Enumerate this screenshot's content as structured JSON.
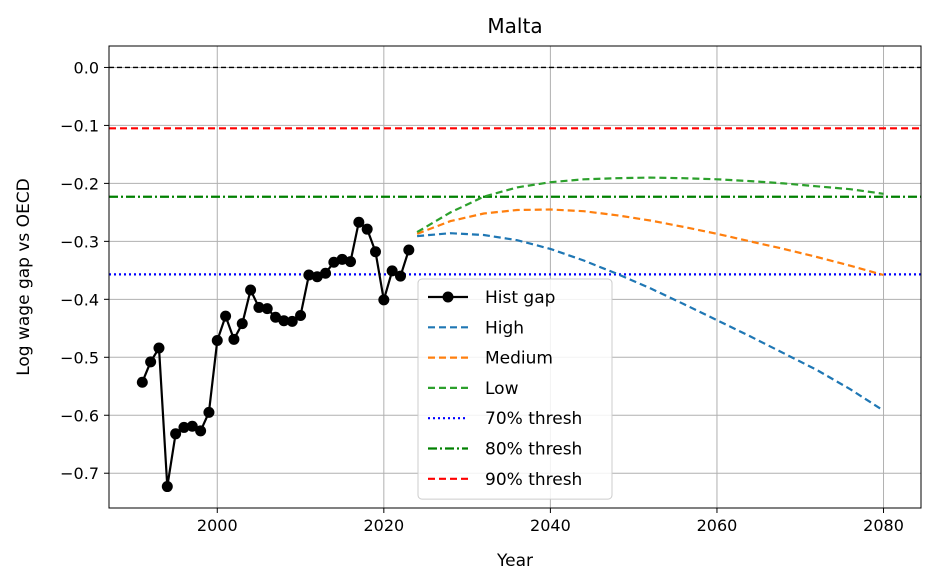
{
  "chart_data": {
    "type": "line",
    "title": "Malta",
    "xlabel": "Year",
    "ylabel": "Log wage gap vs OECD",
    "xlim": [
      1987,
      2084.5
    ],
    "ylim": [
      -0.76,
      0.037
    ],
    "xticks": [
      2000,
      2020,
      2040,
      2060,
      2080
    ],
    "yticks": [
      0.0,
      -0.1,
      -0.2,
      -0.3,
      -0.4,
      -0.5,
      -0.6,
      -0.7
    ],
    "ytick_labels": [
      "0.0",
      "−0.1",
      "−0.2",
      "−0.3",
      "−0.4",
      "−0.5",
      "−0.6",
      "−0.7"
    ],
    "xtick_labels": [
      "2000",
      "2020",
      "2040",
      "2060",
      "2080"
    ],
    "grid": true,
    "legend_position": "lower-center",
    "historical": {
      "name": "Hist gap",
      "color": "#000000",
      "x": [
        1991,
        1992,
        1993,
        1994,
        1995,
        1996,
        1997,
        1998,
        1999,
        2000,
        2001,
        2002,
        2003,
        2004,
        2005,
        2006,
        2007,
        2008,
        2009,
        2010,
        2011,
        2012,
        2013,
        2014,
        2015,
        2016,
        2017,
        2018,
        2019,
        2020,
        2021,
        2022,
        2023
      ],
      "y": [
        -0.543,
        -0.508,
        -0.484,
        -0.723,
        -0.632,
        -0.621,
        -0.619,
        -0.627,
        -0.595,
        -0.471,
        -0.429,
        -0.469,
        -0.442,
        -0.384,
        -0.414,
        -0.416,
        -0.431,
        -0.437,
        -0.438,
        -0.428,
        -0.358,
        -0.361,
        -0.355,
        -0.336,
        -0.331,
        -0.335,
        -0.267,
        -0.279,
        -0.318,
        -0.401,
        -0.351,
        -0.36,
        -0.315
      ]
    },
    "scenarios": [
      {
        "name": "High",
        "color": "#1f77b4",
        "x": [
          2024,
          2028,
          2032,
          2036,
          2040,
          2044,
          2048,
          2052,
          2056,
          2060,
          2064,
          2068,
          2072,
          2076,
          2080
        ],
        "y": [
          -0.291,
          -0.286,
          -0.289,
          -0.298,
          -0.313,
          -0.333,
          -0.356,
          -0.381,
          -0.408,
          -0.436,
          -0.464,
          -0.493,
          -0.522,
          -0.555,
          -0.592
        ]
      },
      {
        "name": "Medium",
        "color": "#ff7f0e",
        "x": [
          2024,
          2028,
          2032,
          2036,
          2040,
          2044,
          2048,
          2052,
          2056,
          2060,
          2064,
          2068,
          2072,
          2076,
          2080
        ],
        "y": [
          -0.287,
          -0.265,
          -0.252,
          -0.246,
          -0.245,
          -0.248,
          -0.255,
          -0.264,
          -0.275,
          -0.287,
          -0.3,
          -0.313,
          -0.327,
          -0.342,
          -0.358
        ]
      },
      {
        "name": "Low",
        "color": "#2ca02c",
        "x": [
          2024,
          2028,
          2032,
          2036,
          2040,
          2044,
          2048,
          2052,
          2056,
          2060,
          2064,
          2068,
          2072,
          2076,
          2080
        ],
        "y": [
          -0.284,
          -0.25,
          -0.223,
          -0.207,
          -0.198,
          -0.193,
          -0.191,
          -0.19,
          -0.191,
          -0.193,
          -0.196,
          -0.2,
          -0.205,
          -0.21,
          -0.218
        ]
      }
    ],
    "thresholds": [
      {
        "name": "70% thresh",
        "value": -0.357,
        "color": "#0000ff",
        "style": "dotted"
      },
      {
        "name": "80% thresh",
        "value": -0.223,
        "color": "#008000",
        "style": "dashdot"
      },
      {
        "name": "90% thresh",
        "value": -0.105,
        "color": "#ff0000",
        "style": "dashed"
      }
    ],
    "zero_line": {
      "value": 0.0,
      "color": "#000000",
      "style": "dashed"
    }
  }
}
